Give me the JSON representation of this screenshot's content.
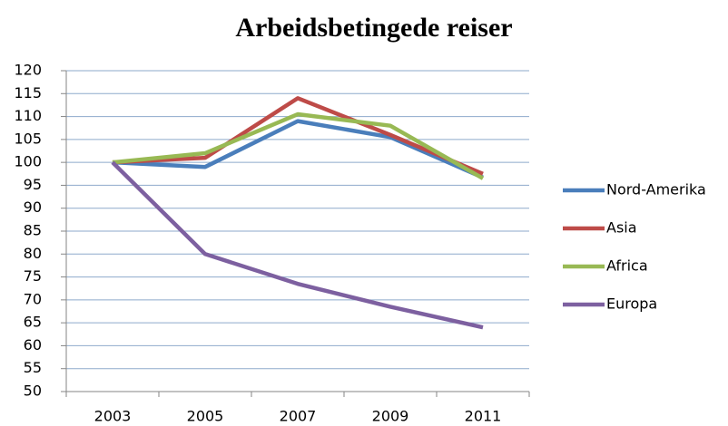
{
  "chart_data": {
    "type": "line",
    "title": "Arbeidsbetingede reiser",
    "categories": [
      "2003",
      "2005",
      "2007",
      "2009",
      "2011"
    ],
    "series": [
      {
        "name": "Nord-Amerika",
        "color": "#4a7ebb",
        "values": [
          100,
          99,
          109,
          105.5,
          96.7
        ]
      },
      {
        "name": "Asia",
        "color": "#be4b48",
        "values": [
          100,
          101,
          114,
          106,
          97.5
        ]
      },
      {
        "name": "Africa",
        "color": "#98b954",
        "values": [
          100,
          102,
          110.5,
          108,
          96.5
        ]
      },
      {
        "name": "Europa",
        "color": "#7d60a0",
        "values": [
          100,
          80,
          73.5,
          68.5,
          64
        ]
      }
    ],
    "ylim": [
      50,
      120
    ],
    "yticks": [
      50,
      55,
      60,
      65,
      70,
      75,
      80,
      85,
      90,
      95,
      100,
      105,
      110,
      115,
      120
    ],
    "grid": true,
    "legend": "right"
  }
}
